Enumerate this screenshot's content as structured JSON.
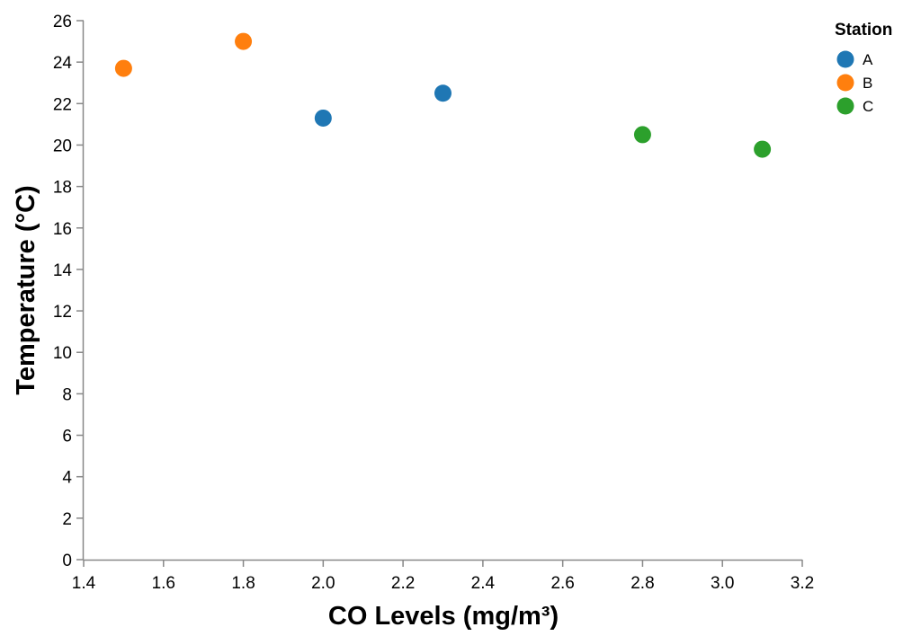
{
  "chart_data": {
    "type": "scatter",
    "title": "",
    "xlabel": "CO Levels (mg/m³)",
    "ylabel": "Temperature (°C)",
    "xlim": [
      1.4,
      3.2
    ],
    "ylim": [
      0,
      26
    ],
    "x_ticks": [
      "1.4",
      "1.6",
      "1.8",
      "2.0",
      "2.2",
      "2.4",
      "2.6",
      "2.8",
      "3.0",
      "3.2"
    ],
    "y_ticks": [
      "0",
      "2",
      "4",
      "6",
      "8",
      "10",
      "12",
      "14",
      "16",
      "18",
      "20",
      "22",
      "24",
      "26"
    ],
    "grid": false,
    "legend": {
      "title": "Station",
      "placement": "top-right"
    },
    "series": [
      {
        "name": "A",
        "color": "#1f77b4",
        "points": [
          {
            "x": 2.0,
            "y": 21.3
          },
          {
            "x": 2.3,
            "y": 22.5
          }
        ]
      },
      {
        "name": "B",
        "color": "#ff7f0e",
        "points": [
          {
            "x": 1.5,
            "y": 23.7
          },
          {
            "x": 1.8,
            "y": 25.0
          }
        ]
      },
      {
        "name": "C",
        "color": "#2ca02c",
        "points": [
          {
            "x": 2.8,
            "y": 20.5
          },
          {
            "x": 3.1,
            "y": 19.8
          }
        ]
      }
    ]
  }
}
